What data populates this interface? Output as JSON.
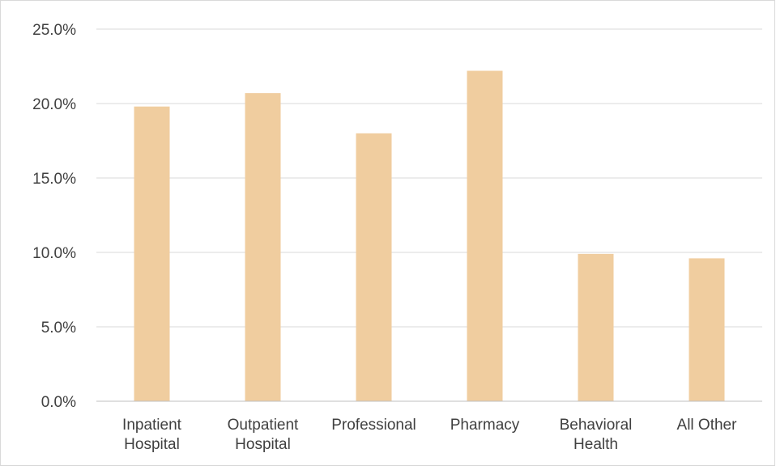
{
  "chart_data": {
    "type": "bar",
    "categories": [
      [
        "Inpatient",
        "Hospital"
      ],
      [
        "Outpatient",
        "Hospital"
      ],
      [
        "Professional"
      ],
      [
        "Pharmacy"
      ],
      [
        "Behavioral",
        "Health"
      ],
      [
        "All Other"
      ]
    ],
    "values": [
      19.8,
      20.7,
      18.0,
      22.2,
      9.9,
      9.6
    ],
    "unit": "%",
    "ylim": [
      0,
      25
    ],
    "yticks": [
      0,
      5,
      10,
      15,
      20,
      25
    ],
    "ytick_labels": [
      "0.0%",
      "5.0%",
      "10.0%",
      "15.0%",
      "20.0%",
      "25.0%"
    ],
    "title": "",
    "xlabel": "",
    "ylabel": "",
    "grid": true,
    "legend": "none",
    "colors": {
      "bar": "#F0CD9F",
      "grid": "#d9d9d9",
      "axis": "#bfbfbf",
      "text": "#404040"
    }
  }
}
